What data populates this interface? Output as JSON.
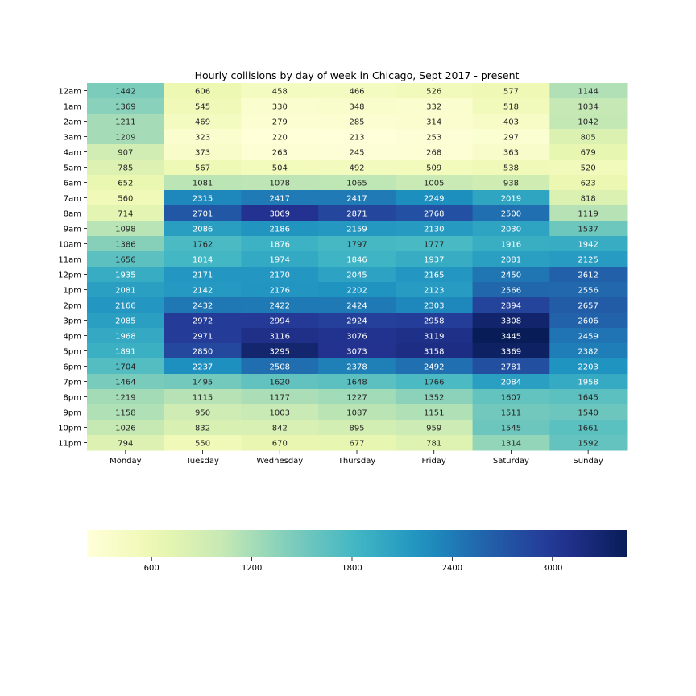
{
  "chart_data": {
    "type": "heatmap",
    "title": "Hourly collisions by day of week in Chicago, Sept 2017 - present",
    "xlabel": "",
    "ylabel": "",
    "columns": [
      "Monday",
      "Tuesday",
      "Wednesday",
      "Thursday",
      "Friday",
      "Saturday",
      "Sunday"
    ],
    "rows": [
      "12am",
      "1am",
      "2am",
      "3am",
      "4am",
      "5am",
      "6am",
      "7am",
      "8am",
      "9am",
      "10am",
      "11am",
      "12pm",
      "1pm",
      "2pm",
      "3pm",
      "4pm",
      "5pm",
      "6pm",
      "7pm",
      "8pm",
      "9pm",
      "10pm",
      "11pm"
    ],
    "values": [
      [
        1442,
        606,
        458,
        466,
        526,
        577,
        1144
      ],
      [
        1369,
        545,
        330,
        348,
        332,
        518,
        1034
      ],
      [
        1211,
        469,
        279,
        285,
        314,
        403,
        1042
      ],
      [
        1209,
        323,
        220,
        213,
        253,
        297,
        805
      ],
      [
        907,
        373,
        263,
        245,
        268,
        363,
        679
      ],
      [
        785,
        567,
        504,
        492,
        509,
        538,
        520
      ],
      [
        652,
        1081,
        1078,
        1065,
        1005,
        938,
        623
      ],
      [
        560,
        2315,
        2417,
        2417,
        2249,
        2019,
        818
      ],
      [
        714,
        2701,
        3069,
        2871,
        2768,
        2500,
        1119
      ],
      [
        1098,
        2086,
        2186,
        2159,
        2130,
        2030,
        1537
      ],
      [
        1386,
        1762,
        1876,
        1797,
        1777,
        1916,
        1942
      ],
      [
        1656,
        1814,
        1974,
        1846,
        1937,
        2081,
        2125
      ],
      [
        1935,
        2171,
        2170,
        2045,
        2165,
        2450,
        2612
      ],
      [
        2081,
        2142,
        2176,
        2202,
        2123,
        2566,
        2556
      ],
      [
        2166,
        2432,
        2422,
        2424,
        2303,
        2894,
        2657
      ],
      [
        2085,
        2972,
        2994,
        2924,
        2958,
        3308,
        2606
      ],
      [
        1968,
        2971,
        3116,
        3076,
        3119,
        3445,
        2459
      ],
      [
        1891,
        2850,
        3295,
        3073,
        3158,
        3369,
        2382
      ],
      [
        1704,
        2237,
        2508,
        2378,
        2492,
        2781,
        2203
      ],
      [
        1464,
        1495,
        1620,
        1648,
        1766,
        2084,
        1958
      ],
      [
        1219,
        1115,
        1177,
        1227,
        1352,
        1607,
        1645
      ],
      [
        1158,
        950,
        1003,
        1087,
        1151,
        1511,
        1540
      ],
      [
        1026,
        832,
        842,
        895,
        959,
        1545,
        1661
      ],
      [
        794,
        550,
        670,
        677,
        781,
        1314,
        1592
      ]
    ],
    "colorbar": {
      "colormap": "YlGnBu",
      "range": [
        213,
        3445
      ],
      "ticks": [
        600,
        1200,
        1800,
        2400,
        3000
      ],
      "orientation": "horizontal",
      "placement": "bottom"
    }
  }
}
